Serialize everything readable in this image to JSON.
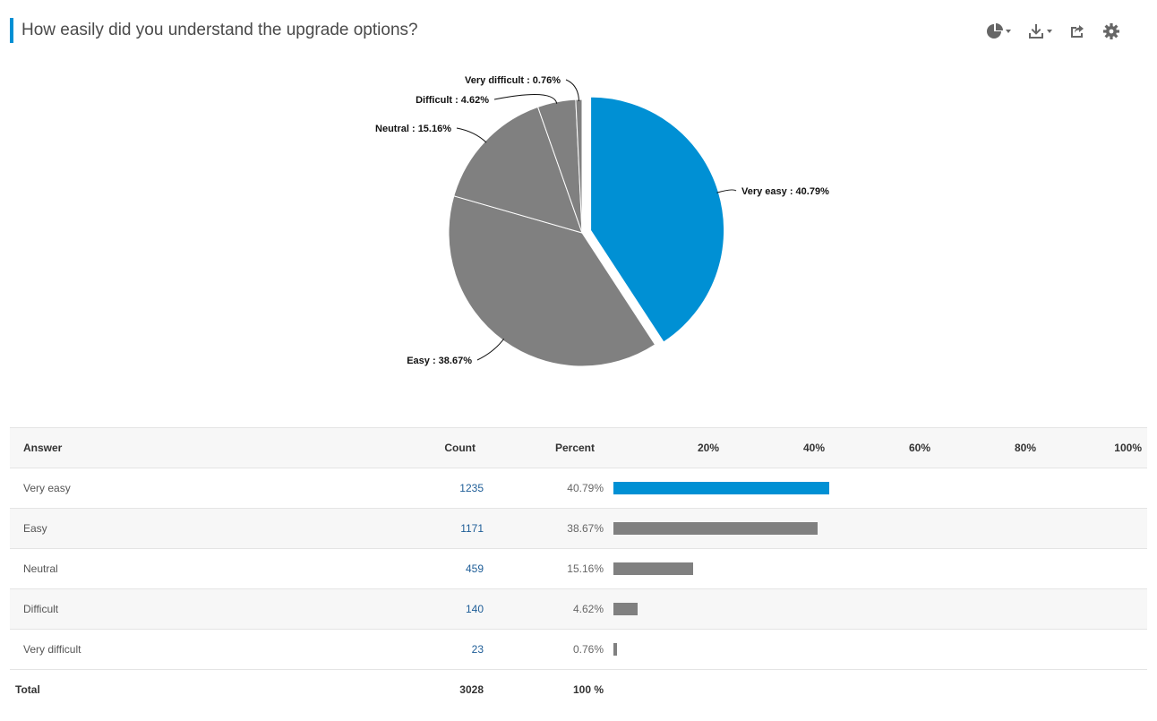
{
  "header": {
    "title": "How easily did you understand the upgrade options?",
    "accent_color": "#0090d4",
    "tools": [
      {
        "name": "chart-type-icon",
        "has_caret": true
      },
      {
        "name": "download-icon",
        "has_caret": true
      },
      {
        "name": "share-icon",
        "has_caret": false
      },
      {
        "name": "gear-icon",
        "has_caret": false
      }
    ]
  },
  "chart_data": {
    "type": "pie",
    "title": "",
    "slices": [
      {
        "label": "Very easy",
        "value": 40.79,
        "color": "#0090d4",
        "exploded": true,
        "data_label": "Very easy : 40.79%"
      },
      {
        "label": "Easy",
        "value": 38.67,
        "color": "#808080",
        "exploded": false,
        "data_label": "Easy : 38.67%"
      },
      {
        "label": "Neutral",
        "value": 15.16,
        "color": "#808080",
        "exploded": false,
        "data_label": "Neutral : 15.16%"
      },
      {
        "label": "Difficult",
        "value": 4.62,
        "color": "#808080",
        "exploded": false,
        "data_label": "Difficult : 4.62%"
      },
      {
        "label": "Very difficult",
        "value": 0.76,
        "color": "#808080",
        "exploded": false,
        "data_label": "Very difficult : 0.76%"
      }
    ]
  },
  "table": {
    "columns": {
      "answer": "Answer",
      "count": "Count",
      "percent": "Percent"
    },
    "scale_ticks": [
      "20%",
      "40%",
      "60%",
      "80%",
      "100%"
    ],
    "rows": [
      {
        "answer": "Very easy",
        "count": "1235",
        "percent": "40.79%",
        "fraction": 0.4079,
        "color": "#0090d4"
      },
      {
        "answer": "Easy",
        "count": "1171",
        "percent": "38.67%",
        "fraction": 0.3867,
        "color": "#808080"
      },
      {
        "answer": "Neutral",
        "count": "459",
        "percent": "15.16%",
        "fraction": 0.1516,
        "color": "#808080"
      },
      {
        "answer": "Difficult",
        "count": "140",
        "percent": "4.62%",
        "fraction": 0.0462,
        "color": "#808080"
      },
      {
        "answer": "Very difficult",
        "count": "23",
        "percent": "0.76%",
        "fraction": 0.0076,
        "color": "#808080"
      }
    ],
    "total": {
      "label": "Total",
      "count": "3028",
      "percent": "100 %"
    }
  }
}
